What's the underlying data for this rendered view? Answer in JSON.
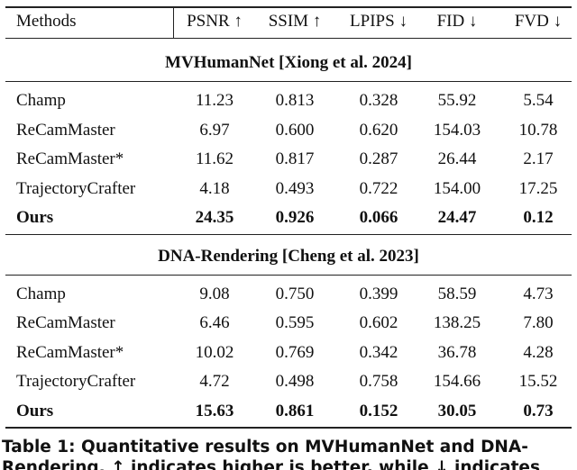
{
  "table": {
    "header": [
      "Methods",
      "PSNR ↑",
      "SSIM ↑",
      "LPIPS ↓",
      "FID ↓",
      "FVD ↓"
    ],
    "sections": [
      {
        "title": "MVHumanNet [Xiong et al. 2024]",
        "rows": [
          [
            "Champ",
            "11.23",
            "0.813",
            "0.328",
            "55.92",
            "5.54"
          ],
          [
            "ReCamMaster",
            "6.97",
            "0.600",
            "0.620",
            "154.03",
            "10.78"
          ],
          [
            "ReCamMaster*",
            "11.62",
            "0.817",
            "0.287",
            "26.44",
            "2.17"
          ],
          [
            "TrajectoryCrafter",
            "4.18",
            "0.493",
            "0.722",
            "154.00",
            "17.25"
          ],
          [
            "Ours",
            "24.35",
            "0.926",
            "0.066",
            "24.47",
            "0.12"
          ]
        ]
      },
      {
        "title": "DNA-Rendering [Cheng et al. 2023]",
        "rows": [
          [
            "Champ",
            "9.08",
            "0.750",
            "0.399",
            "58.59",
            "4.73"
          ],
          [
            "ReCamMaster",
            "6.46",
            "0.595",
            "0.602",
            "138.25",
            "7.80"
          ],
          [
            "ReCamMaster*",
            "10.02",
            "0.769",
            "0.342",
            "36.78",
            "4.28"
          ],
          [
            "TrajectoryCrafter",
            "4.72",
            "0.498",
            "0.758",
            "154.66",
            "15.52"
          ],
          [
            "Ours",
            "15.63",
            "0.861",
            "0.152",
            "30.05",
            "0.73"
          ]
        ]
      }
    ]
  },
  "caption": [
    "Table 1: Quantitative results on MVHumanNet and DNA-",
    "Rendering. ↑ indicates higher is better, while ↓ indicates"
  ]
}
